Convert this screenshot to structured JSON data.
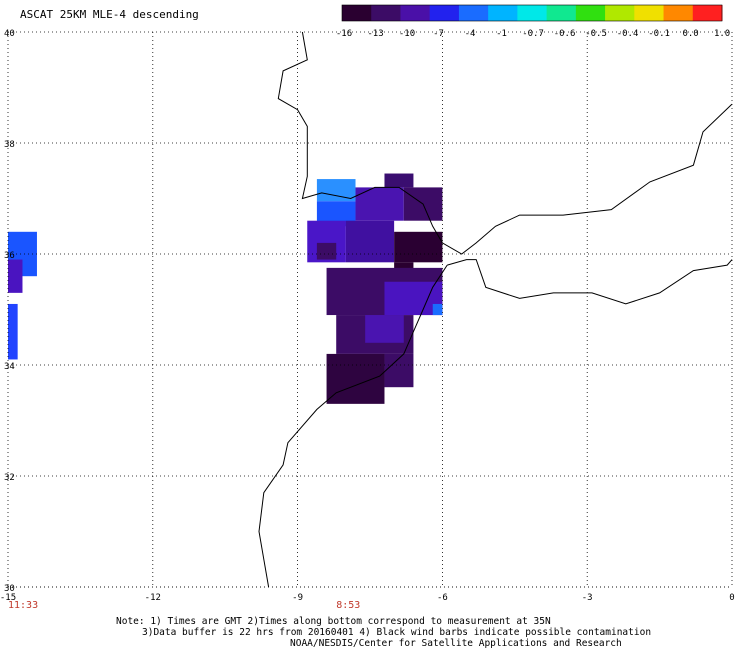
{
  "title": "ASCAT 25KM MLE-4 descending",
  "colorbar": {
    "labels": [
      "-16",
      "-13",
      "-10",
      "-7",
      "-4",
      "-1",
      "-0.7",
      "-0.6",
      "-0.5",
      "-0.4",
      "-0.1",
      "0.0",
      "1.0"
    ],
    "colors": [
      "#2a0030",
      "#3c0c66",
      "#4a10a8",
      "#2222ee",
      "#1a6cff",
      "#00b4ff",
      "#00e8e8",
      "#10e890",
      "#30e010",
      "#b0e800",
      "#f0e000",
      "#ff8800",
      "#ff2020"
    ]
  },
  "axes": {
    "lon_labels": [
      "-15",
      "-12",
      "-9",
      "-6",
      "-3",
      "0"
    ],
    "lat_labels": [
      "40",
      "38",
      "36",
      "34",
      "32",
      "30"
    ]
  },
  "times": [
    {
      "label": "11:33",
      "lon": -15
    },
    {
      "label": "8:53",
      "lon": -8.2
    }
  ],
  "notes": {
    "line1": "Note: 1) Times are GMT 2)Times along bottom correspond to measurement at 35N",
    "line2": "3)Data buffer is 22 hrs from 20160401 4) Black wind barbs indicate possible contamination",
    "line3": "NOAA/NESDIS/Center for Satellite Applications and Research"
  },
  "map_bounds": {
    "lon_min": -15,
    "lon_max": 0,
    "lat_min": 30,
    "lat_max": 40
  },
  "swaths": [
    {
      "lon": [
        -8.6,
        -7.8
      ],
      "lat": [
        36.95,
        37.35
      ],
      "color": "#2a90ff"
    },
    {
      "lon": [
        -8.6,
        -7.8
      ],
      "lat": [
        36.5,
        36.95
      ],
      "color": "#1a55ff"
    },
    {
      "lon": [
        -7.8,
        -6.8
      ],
      "lat": [
        36.6,
        37.2
      ],
      "color": "#4a14b0"
    },
    {
      "lon": [
        -7.2,
        -6.6
      ],
      "lat": [
        37.2,
        37.45
      ],
      "color": "#3a0e70"
    },
    {
      "lon": [
        -6.8,
        -6.0
      ],
      "lat": [
        36.6,
        37.2
      ],
      "color": "#3c0c66"
    },
    {
      "lon": [
        -8.8,
        -8.0
      ],
      "lat": [
        35.85,
        36.6
      ],
      "color": "#4a16c8"
    },
    {
      "lon": [
        -8.0,
        -7.0
      ],
      "lat": [
        35.85,
        36.6
      ],
      "color": "#4010a0"
    },
    {
      "lon": [
        -7.0,
        -6.0
      ],
      "lat": [
        35.85,
        36.4
      ],
      "color": "#2a0032"
    },
    {
      "lon": [
        -8.6,
        -8.2
      ],
      "lat": [
        35.9,
        36.2
      ],
      "color": "#3c0c66"
    },
    {
      "lon": [
        -7.0,
        -6.6
      ],
      "lat": [
        35.7,
        35.85
      ],
      "color": "#2a0030"
    },
    {
      "lon": [
        -8.4,
        -6.0
      ],
      "lat": [
        34.9,
        35.75
      ],
      "color": "#3c0c66"
    },
    {
      "lon": [
        -7.2,
        -6.0
      ],
      "lat": [
        34.9,
        35.5
      ],
      "color": "#4a14c0"
    },
    {
      "lon": [
        -6.2,
        -6.0
      ],
      "lat": [
        34.9,
        35.1
      ],
      "color": "#1a6cff"
    },
    {
      "lon": [
        -8.2,
        -6.6
      ],
      "lat": [
        34.2,
        34.9
      ],
      "color": "#3c0c66"
    },
    {
      "lon": [
        -7.6,
        -6.8
      ],
      "lat": [
        34.4,
        34.9
      ],
      "color": "#4a14b0"
    },
    {
      "lon": [
        -8.4,
        -7.2
      ],
      "lat": [
        33.3,
        34.2
      ],
      "color": "#2e0440"
    },
    {
      "lon": [
        -7.2,
        -6.6
      ],
      "lat": [
        33.6,
        34.2
      ],
      "color": "#3c0c66"
    },
    {
      "lon": [
        -15.0,
        -14.4
      ],
      "lat": [
        35.6,
        36.4
      ],
      "color": "#1a55ff"
    },
    {
      "lon": [
        -15.0,
        -14.7
      ],
      "lat": [
        35.3,
        35.9
      ],
      "color": "#4a14c0"
    },
    {
      "lon": [
        -15.0,
        -14.8
      ],
      "lat": [
        34.1,
        35.1
      ],
      "color": "#2244ff"
    }
  ],
  "coastlines": [
    [
      [
        -8.9,
        40.0
      ],
      [
        -8.8,
        39.5
      ],
      [
        -9.3,
        39.3
      ],
      [
        -9.4,
        38.8
      ],
      [
        -9.0,
        38.6
      ],
      [
        -8.8,
        38.3
      ],
      [
        -8.8,
        37.9
      ],
      [
        -8.8,
        37.4
      ],
      [
        -8.9,
        37.0
      ],
      [
        -8.5,
        37.1
      ],
      [
        -7.9,
        37.0
      ],
      [
        -7.4,
        37.2
      ],
      [
        -6.9,
        37.2
      ],
      [
        -6.4,
        36.9
      ],
      [
        -6.2,
        36.5
      ],
      [
        -6.0,
        36.2
      ],
      [
        -5.6,
        36.0
      ],
      [
        -5.3,
        36.2
      ],
      [
        -4.9,
        36.5
      ],
      [
        -4.4,
        36.7
      ],
      [
        -3.5,
        36.7
      ],
      [
        -2.5,
        36.8
      ],
      [
        -1.7,
        37.3
      ],
      [
        -0.8,
        37.6
      ],
      [
        -0.6,
        38.2
      ],
      [
        0.0,
        38.7
      ]
    ],
    [
      [
        -5.9,
        35.8
      ],
      [
        -5.5,
        35.9
      ],
      [
        -5.3,
        35.9
      ],
      [
        -5.1,
        35.4
      ],
      [
        -4.4,
        35.2
      ],
      [
        -3.7,
        35.3
      ],
      [
        -2.9,
        35.3
      ],
      [
        -2.2,
        35.1
      ],
      [
        -1.5,
        35.3
      ],
      [
        -0.8,
        35.7
      ],
      [
        -0.1,
        35.8
      ],
      [
        0.0,
        35.9
      ]
    ],
    [
      [
        -5.9,
        35.8
      ],
      [
        -6.2,
        35.4
      ],
      [
        -6.4,
        35.0
      ],
      [
        -6.6,
        34.6
      ],
      [
        -6.8,
        34.2
      ],
      [
        -7.3,
        33.8
      ],
      [
        -8.2,
        33.5
      ],
      [
        -8.6,
        33.2
      ],
      [
        -9.2,
        32.6
      ],
      [
        -9.3,
        32.2
      ],
      [
        -9.7,
        31.7
      ],
      [
        -9.8,
        31.0
      ],
      [
        -9.7,
        30.5
      ],
      [
        -9.6,
        30.0
      ]
    ]
  ]
}
